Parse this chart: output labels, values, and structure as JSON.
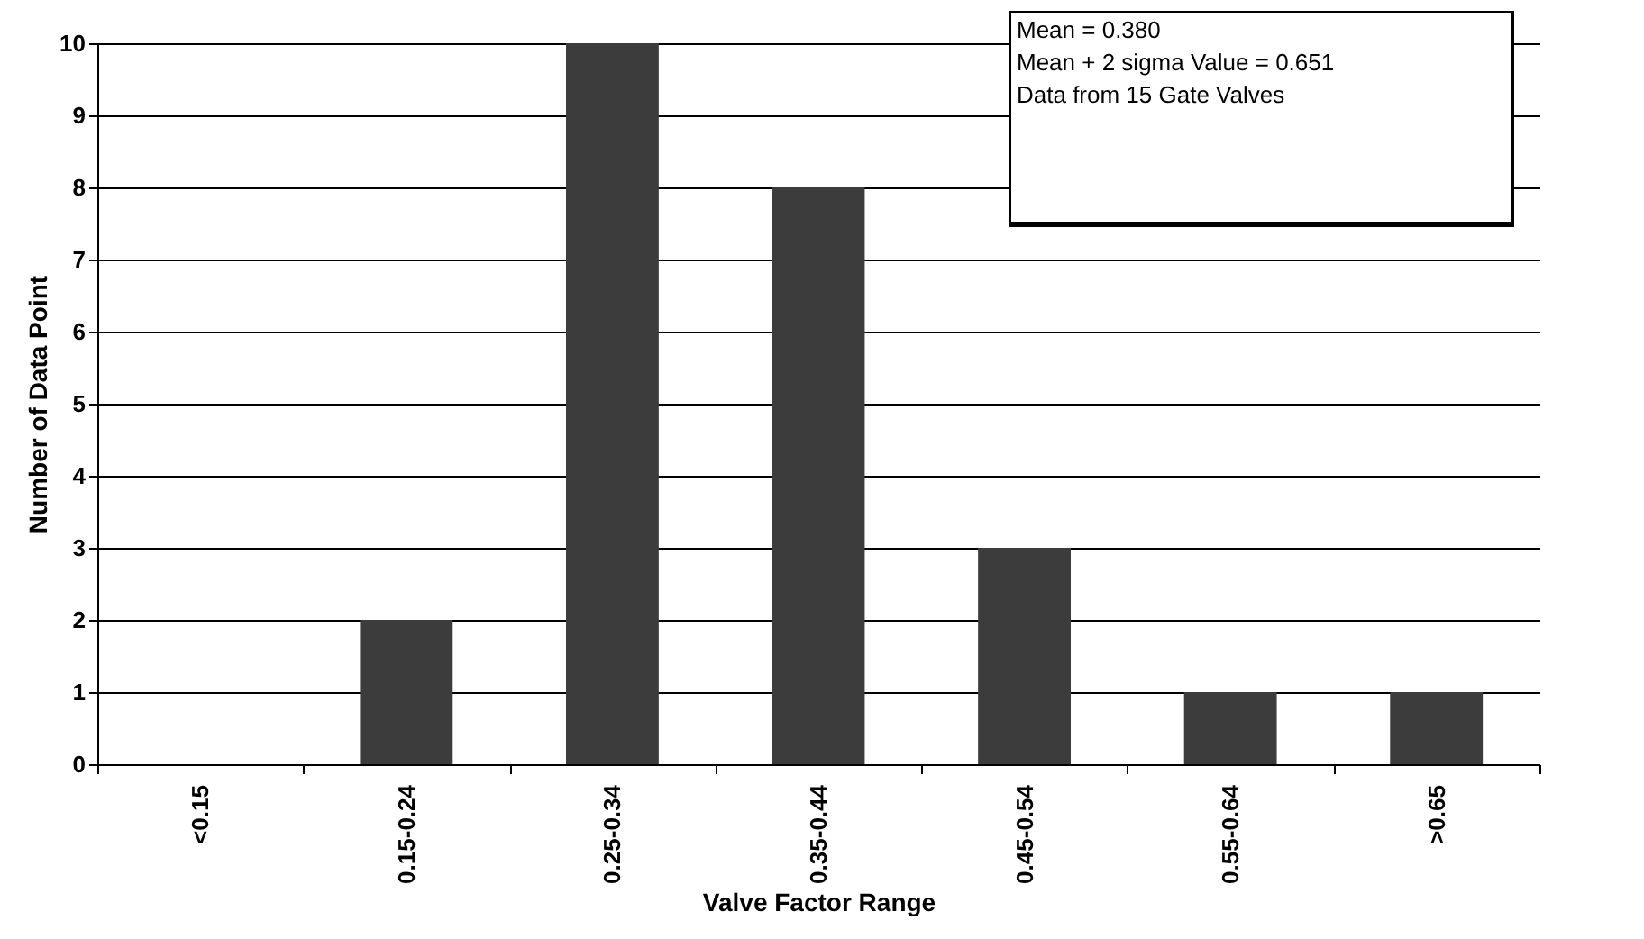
{
  "chart_data": {
    "type": "bar",
    "xlabel": "Valve Factor Range",
    "ylabel": "Number of Data Point",
    "categories": [
      "<0.15",
      "0.15-0.24",
      "0.25-0.34",
      "0.35-0.44",
      "0.45-0.54",
      "0.55-0.64",
      ">0.65"
    ],
    "values": [
      0,
      2,
      10,
      8,
      3,
      1,
      1
    ],
    "color": "#3c3c3c",
    "ylim": [
      0,
      10
    ],
    "yticks": [
      0,
      1,
      2,
      3,
      4,
      5,
      6,
      7,
      8,
      9,
      10
    ],
    "grid": "y",
    "annotations": [
      "Mean = 0.380",
      "Mean + 2 sigma Value = 0.651",
      "Data from 15 Gate Valves"
    ]
  }
}
